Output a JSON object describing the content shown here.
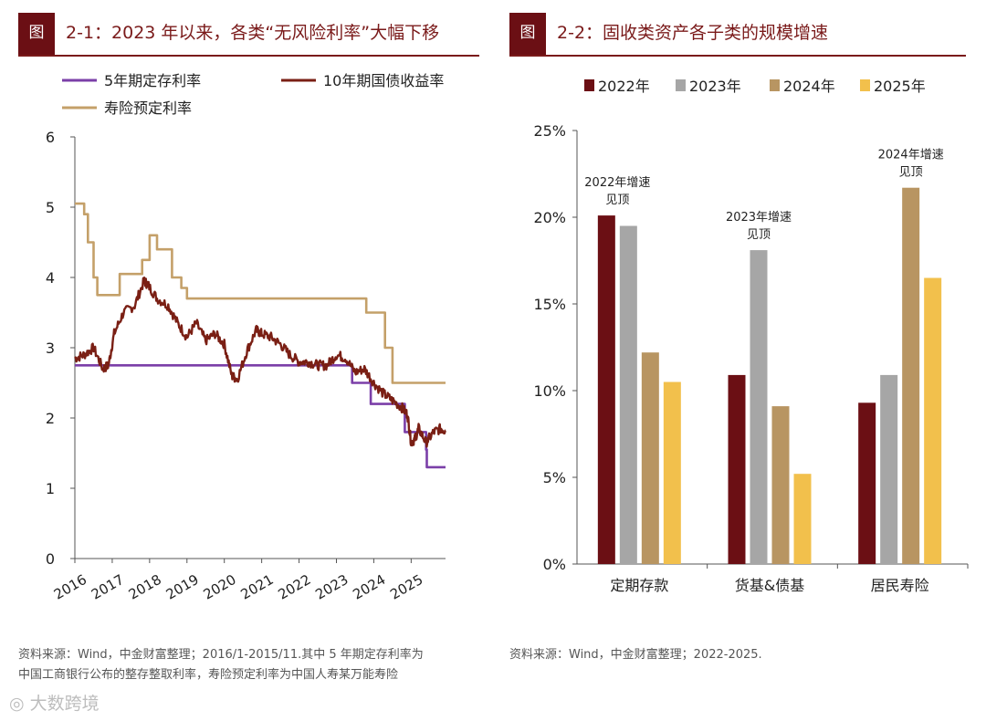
{
  "figure_left": {
    "tag": "图",
    "title": "2-1：2023 年以来，各类“无风险利率”大幅下移"
  },
  "figure_right": {
    "tag": "图",
    "title": "2-2：固收类资产各子类的规模增速"
  },
  "notes": {
    "left_line1": "资料来源：Wind，中金财富整理；2016/1-2015/11.其中 5 年期定存利率为",
    "left_line2": "中国工商银行公布的整存整取利率，寿险预定利率为中国人寿某万能寿险",
    "right": "资料来源：Wind，中金财富整理；2022-2025."
  },
  "watermark": "大数跨境",
  "colors": {
    "brand": "#6b0f14",
    "deposit": "#7b3fa8",
    "bond": "#7a1f14",
    "insurance": "#c4a069",
    "y2022": "#6b0f14",
    "y2023": "#a6a6a6",
    "y2024": "#b89562",
    "y2025": "#f2c04c"
  },
  "chart_data": [
    {
      "type": "line",
      "title": "",
      "ylim": [
        0,
        6
      ],
      "yticks": [
        "0",
        "1",
        "2",
        "3",
        "4",
        "5",
        "6"
      ],
      "xlim": [
        2016,
        2025.92
      ],
      "xticks": [
        "2016",
        "2017",
        "2018",
        "2019",
        "2020",
        "2021",
        "2022",
        "2023",
        "2024",
        "2025"
      ],
      "series": [
        {
          "name": "5年期定存利率",
          "type": "step",
          "x": [
            2016,
            2023.33,
            2023.42,
            2023.75,
            2023.92,
            2024.58,
            2024.83,
            2025.4,
            2025.42,
            2025.92
          ],
          "y": [
            2.75,
            2.75,
            2.5,
            2.5,
            2.2,
            2.2,
            1.8,
            1.55,
            1.3,
            1.3
          ]
        },
        {
          "name": "10年期国债收益率",
          "type": "noisy",
          "x": [
            2016,
            2016.25,
            2016.5,
            2016.75,
            2016.9,
            2017.05,
            2017.3,
            2017.6,
            2017.85,
            2017.95,
            2018.2,
            2018.5,
            2018.75,
            2019.0,
            2019.25,
            2019.5,
            2019.75,
            2020.0,
            2020.2,
            2020.35,
            2020.6,
            2020.85,
            2021.0,
            2021.25,
            2021.5,
            2021.75,
            2022.0,
            2022.25,
            2022.5,
            2022.75,
            2023.0,
            2023.25,
            2023.5,
            2023.75,
            2024.0,
            2024.25,
            2024.5,
            2024.75,
            2024.9,
            2025.0,
            2025.1,
            2025.2,
            2025.4,
            2025.6,
            2025.8,
            2025.92
          ],
          "y": [
            2.85,
            2.9,
            3.0,
            2.7,
            2.75,
            3.2,
            3.5,
            3.6,
            3.95,
            3.9,
            3.7,
            3.6,
            3.35,
            3.15,
            3.35,
            3.1,
            3.2,
            3.05,
            2.6,
            2.55,
            2.95,
            3.25,
            3.2,
            3.15,
            3.05,
            2.9,
            2.8,
            2.8,
            2.75,
            2.75,
            2.9,
            2.85,
            2.65,
            2.7,
            2.5,
            2.35,
            2.25,
            2.15,
            2.05,
            1.65,
            1.7,
            1.85,
            1.65,
            1.8,
            1.85,
            1.82
          ]
        },
        {
          "name": "寿险预定利率",
          "type": "step",
          "x": [
            2016,
            2016.25,
            2016.35,
            2016.5,
            2016.6,
            2017.2,
            2017.8,
            2018.0,
            2018.2,
            2018.6,
            2018.85,
            2019.0,
            2023.33,
            2023.8,
            2024.3,
            2024.5,
            2025.92
          ],
          "y": [
            5.05,
            4.9,
            4.5,
            4.0,
            3.75,
            4.05,
            4.25,
            4.6,
            4.4,
            4.0,
            3.85,
            3.7,
            3.7,
            3.5,
            3.0,
            2.5,
            2.5
          ]
        }
      ]
    },
    {
      "type": "bar",
      "title": "",
      "categories": [
        "定期存款",
        "货基&债基",
        "居民寿险"
      ],
      "ylim": [
        0,
        25
      ],
      "yticks": [
        "0%",
        "5%",
        "10%",
        "15%",
        "20%",
        "25%"
      ],
      "series": [
        {
          "name": "2022年",
          "values": [
            20.1,
            10.9,
            9.3
          ]
        },
        {
          "name": "2023年",
          "values": [
            19.5,
            18.1,
            10.9
          ]
        },
        {
          "name": "2024年",
          "values": [
            12.2,
            9.1,
            21.7
          ]
        },
        {
          "name": "2025年",
          "values": [
            10.5,
            5.2,
            16.5
          ]
        }
      ],
      "annotations": [
        {
          "line1": "2022年增速",
          "line2": "见顶"
        },
        {
          "line1": "2023年增速",
          "line2": "见顶"
        },
        {
          "line1": "2024年增速",
          "line2": "见顶"
        }
      ]
    }
  ]
}
